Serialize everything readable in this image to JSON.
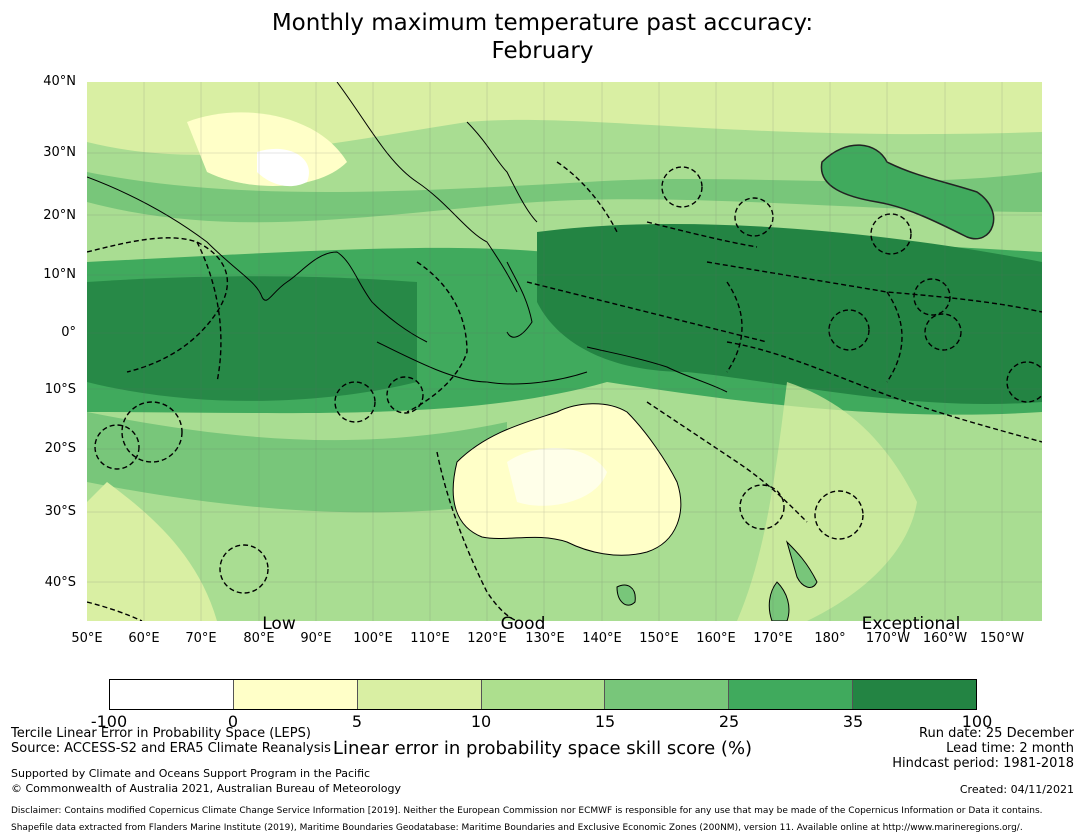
{
  "title": {
    "line1": "Monthly maximum temperature past accuracy:",
    "line2": "February"
  },
  "map": {
    "lat_labels": [
      "40°N",
      "30°N",
      "20°N",
      "10°N",
      "0°",
      "10°S",
      "20°S",
      "30°S",
      "40°S"
    ],
    "lon_labels": [
      "50°E",
      "60°E",
      "70°E",
      "80°E",
      "90°E",
      "100°E",
      "110°E",
      "120°E",
      "130°E",
      "140°E",
      "150°E",
      "160°E",
      "170°E",
      "180°",
      "170°W",
      "160°W",
      "150°W"
    ],
    "category_labels": [
      "Low",
      "Good",
      "Exceptional"
    ]
  },
  "colorbar": {
    "ticks": [
      "-100",
      "0",
      "5",
      "10",
      "15",
      "25",
      "35",
      "100"
    ],
    "colors": [
      "#ffffff",
      "#ffffc8",
      "#d9efa3",
      "#addf8e",
      "#78c67a",
      "#40aa5d",
      "#238443"
    ],
    "label": "Linear error in probability space skill score (%)"
  },
  "footer": {
    "left1": "Tercile Linear Error in Probability Space (LEPS)",
    "left2": "Source: ACCESS-S2 and ERA5 Climate Reanalysis",
    "right1": "Run date: 25 December",
    "right2": "Lead time: 2 month",
    "right3": "Hindcast period: 1981-2018",
    "support1": "Supported by Climate and Oceans Support Program in the Pacific",
    "support2": "© Commonwealth of Australia 2021, Australian Bureau of Meteorology",
    "created": "Created: 04/11/2021",
    "disclaimer1": "Disclaimer: Contains modified Copernicus Climate Change Service Information [2019]. Neither the European Commission nor ECMWF is responsible for any use that may be made of the Copernicus Information or Data it contains.",
    "disclaimer2": "Shapefile data extracted from Flanders Marine Institute (2019), Maritime Boundaries Geodatabase: Maritime Boundaries and Exclusive Economic Zones (200NM), version 11. Available online at http://www.marineregions.org/."
  }
}
